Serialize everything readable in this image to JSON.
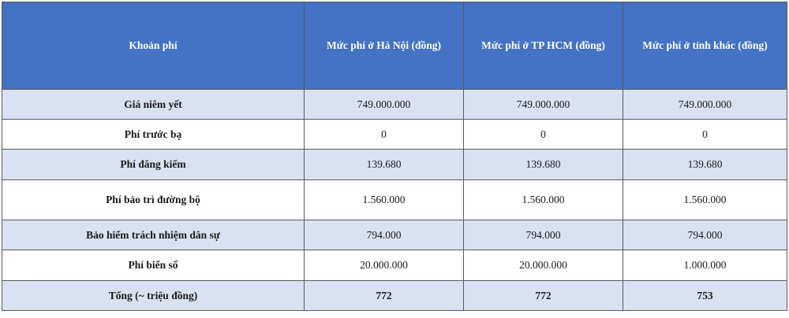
{
  "table": {
    "headers": [
      "Khoản phí",
      "Mức phí ở Hà Nội (đồng)",
      "Mức phí ở TP HCM (đồng)",
      "Mức phí ở tỉnh khác (đồng)"
    ],
    "rows": [
      {
        "label": "Giá niêm yết",
        "values": [
          "749.000.000",
          "749.000.000",
          "749.000.000"
        ]
      },
      {
        "label": "Phí trước bạ",
        "values": [
          "0",
          "0",
          "0"
        ]
      },
      {
        "label": "Phí đăng kiểm",
        "values": [
          "139.680",
          "139.680",
          "139.680"
        ]
      },
      {
        "label": "Phí bảo trì đường bộ",
        "values": [
          "1.560.000",
          "1.560.000",
          "1.560.000"
        ]
      },
      {
        "label": "Bảo hiểm trách nhiệm dân sự",
        "values": [
          "794.000",
          "794.000",
          "794.000"
        ]
      },
      {
        "label": "Phí biển số",
        "values": [
          "20.000.000",
          "20.000.000",
          "1.000.000"
        ]
      },
      {
        "label": "Tổng (~ triệu đồng)",
        "values": [
          "772",
          "772",
          "753"
        ]
      }
    ]
  },
  "colors": {
    "header_bg": "#4472c4",
    "header_text": "#ffffff",
    "band_bg": "#d9e1f2",
    "border": "#5a5a5a"
  }
}
